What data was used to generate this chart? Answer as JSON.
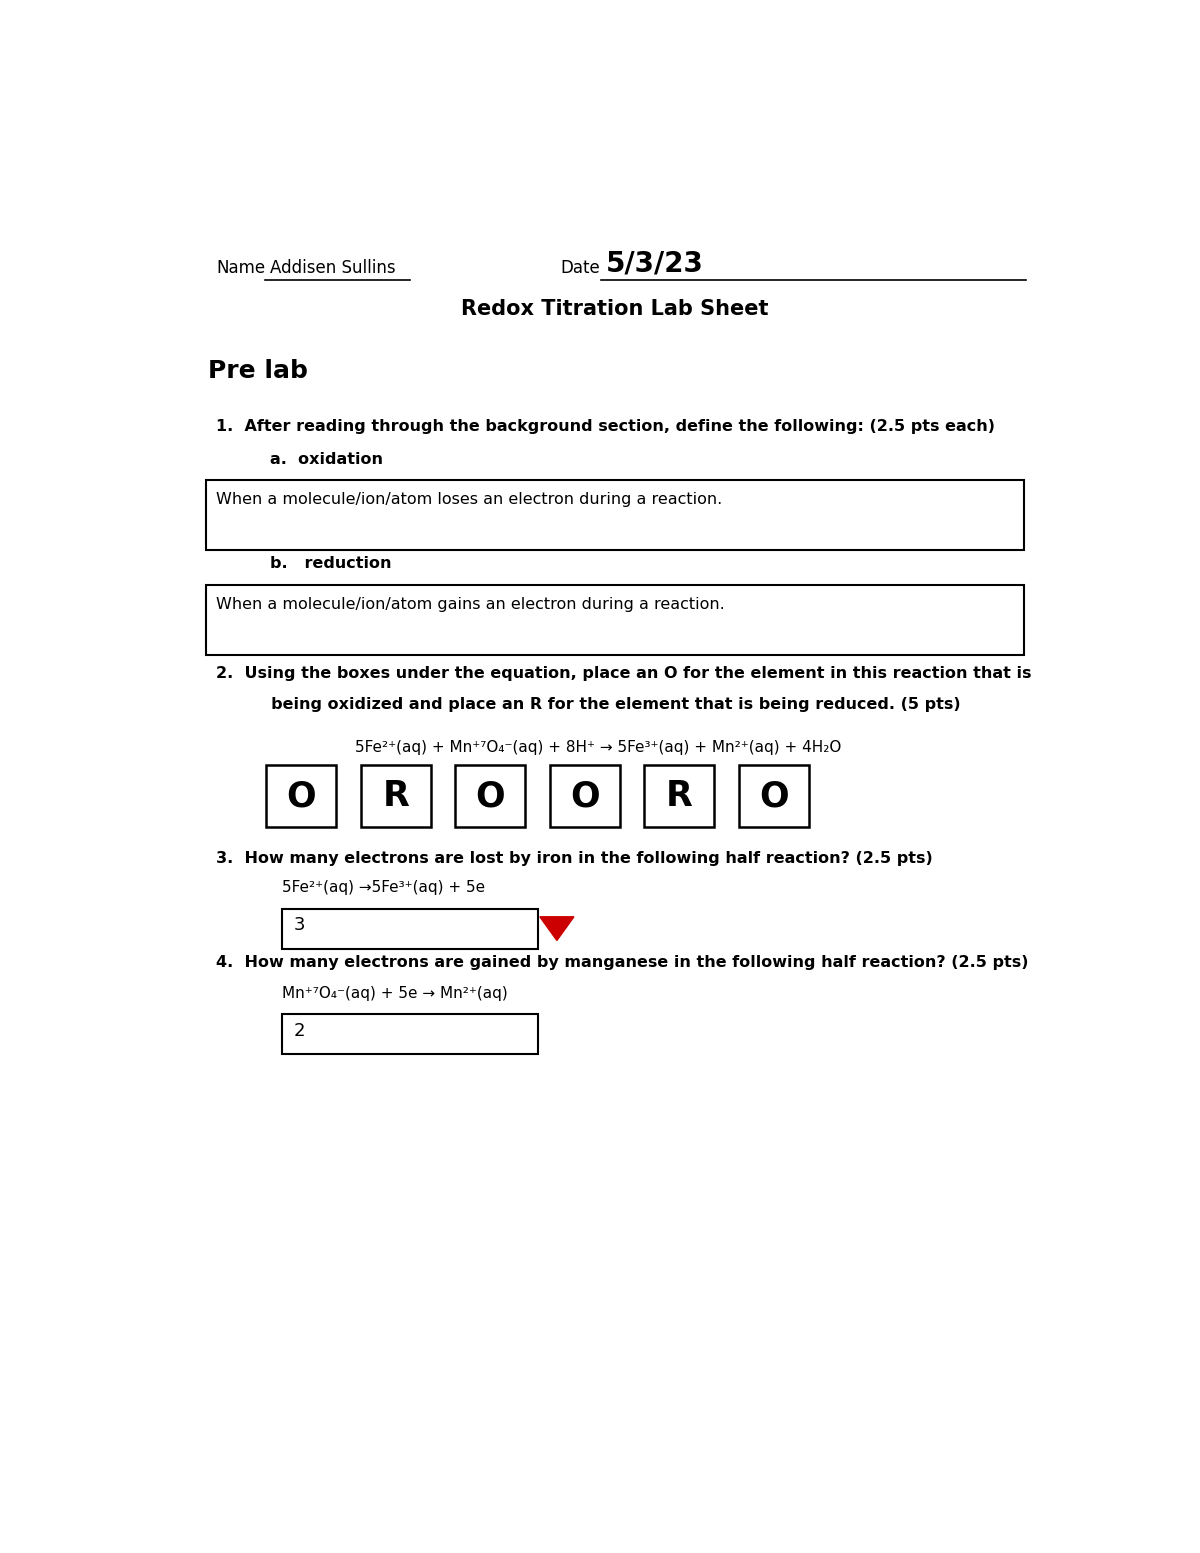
{
  "bg_color": "#ffffff",
  "name_label": "Name",
  "name_value": "Addisen Sullins",
  "date_label": "Date",
  "date_value": "5/3/23",
  "title": "Redox Titration Lab Sheet",
  "section_title": "Pre lab",
  "q1_text": "1.  After reading through the background section, define the following: (2.5 pts each)",
  "q1a_label": "a.  oxidation",
  "q1a_answer": "When a molecule/ion/atom loses an electron during a reaction.",
  "q1b_label": "b.   reduction",
  "q1b_answer": "When a molecule/ion/atom gains an electron during a reaction.",
  "q2_line1": "2.  Using the boxes under the equation, place an O for the element in this reaction that is",
  "q2_line2": "     being oxidized and place an R for the element that is being reduced. (5 pts)",
  "equation": "5Fe²⁺(aq) + Mn⁺⁷O₄⁻(aq) + 8H⁺ → 5Fe³⁺(aq) + Mn²⁺(aq) + 4H₂O",
  "box_labels": [
    "O",
    "R",
    "O",
    "O",
    "R",
    "O"
  ],
  "q3_text": "3.  How many electrons are lost by iron in the following half reaction? (2.5 pts)",
  "q3_equation": "5Fe²⁺(aq) →5Fe³⁺(aq) + 5e",
  "q3_answer": "3",
  "q4_text": "4.  How many electrons are gained by manganese in the following half reaction? (2.5 pts)",
  "q4_equation": "Mn⁺⁷O₄⁻(aq) + 5e → Mn²⁺(aq)",
  "q4_answer": "2",
  "arrow_color": "#cc0000",
  "page_width": 12.0,
  "page_height": 15.53
}
